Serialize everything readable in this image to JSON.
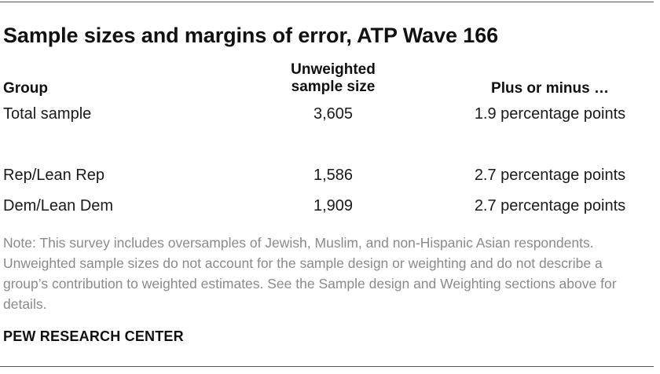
{
  "title": "Sample sizes and margins of error, ATP Wave 166",
  "headers": {
    "group": "Group",
    "sample_size_line1": "Unweighted",
    "sample_size_line2": "sample size",
    "margin": "Plus or minus …"
  },
  "rows": [
    {
      "group": "Total sample",
      "size": "3,605",
      "margin": "1.9 percentage points"
    },
    {
      "group": "Rep/Lean Rep",
      "size": "1,586",
      "margin": "2.7 percentage points"
    },
    {
      "group": "Dem/Lean Dem",
      "size": "1,909",
      "margin": "2.7 percentage points"
    }
  ],
  "note": "Note: This survey includes oversamples of Jewish, Muslim, and non-Hispanic Asian respondents. Unweighted sample sizes do not account for the sample design or weighting and do not describe a group’s contribution to weighted estimates. See the Sample design and Weighting sections above for details.",
  "source": "PEW RESEARCH CENTER"
}
